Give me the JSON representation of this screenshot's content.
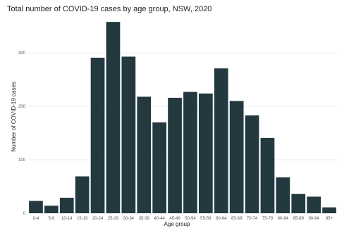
{
  "chart_data": {
    "type": "bar",
    "title": "Total number of COVID-19 cases by age group, NSW, 2020",
    "xlabel": "Age group",
    "ylabel": "Number of COVID-19 cases",
    "categories": [
      "0-4",
      "5-9",
      "10-14",
      "15-19",
      "20-24",
      "25-29",
      "30-34",
      "35-39",
      "40-44",
      "45-49",
      "50-54",
      "55-59",
      "60-64",
      "65-69",
      "70-74",
      "75-79",
      "80-84",
      "85-89",
      "90-94",
      "95+"
    ],
    "values": [
      23,
      14,
      29,
      69,
      291,
      358,
      293,
      218,
      170,
      216,
      227,
      224,
      271,
      210,
      183,
      141,
      67,
      36,
      31,
      11
    ],
    "yticks": [
      0,
      100,
      200,
      300
    ],
    "ylim": [
      0,
      370
    ],
    "grid": "horizontal",
    "legend": "none",
    "bar_color": "#24393f"
  }
}
